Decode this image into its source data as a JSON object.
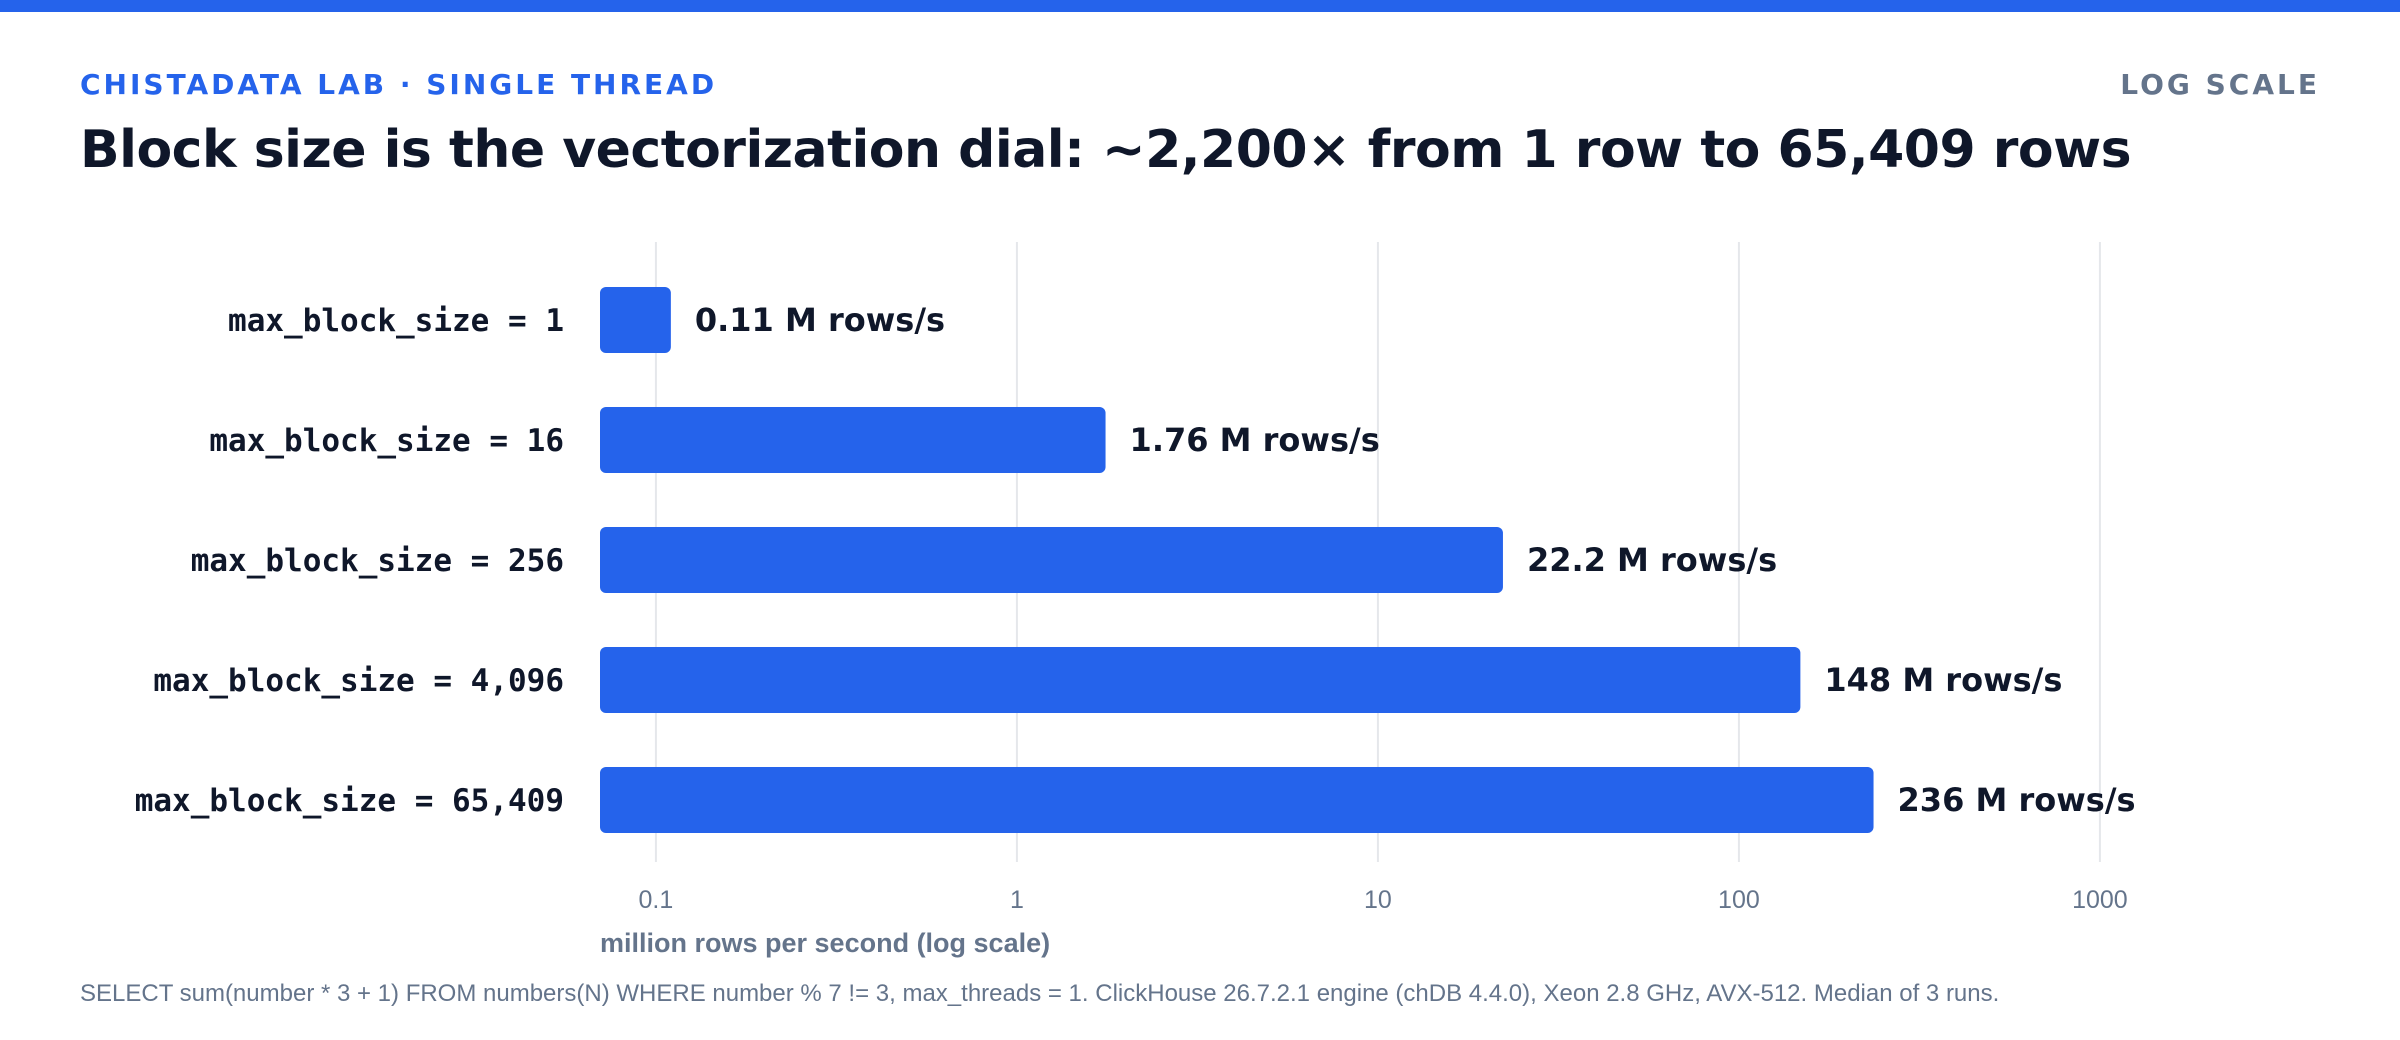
{
  "header": {
    "eyebrow": "CHISTADATA LAB · SINGLE THREAD",
    "scale_tag": "LOG SCALE",
    "title": "Block size is the vectorization dial: ~2,200× from 1 row to 65,409 rows"
  },
  "footnote": "SELECT sum(number * 3 + 1) FROM numbers(N) WHERE number % 7 != 3, max_threads = 1. ClickHouse 26.7.2.1 engine (chDB 4.4.0), Xeon 2.8 GHz, AVX-512. Median of 3 runs.",
  "colors": {
    "bar": "#2563eb",
    "accent": "#2563eb",
    "text": "#0f172a",
    "muted": "#64748b",
    "grid": "#e5e7eb"
  },
  "chart_data": {
    "type": "bar",
    "orientation": "horizontal",
    "categories": [
      "max_block_size = 1",
      "max_block_size = 16",
      "max_block_size = 256",
      "max_block_size = 4,096",
      "max_block_size = 65,409"
    ],
    "values": [
      0.11,
      1.76,
      22.2,
      148,
      236
    ],
    "value_labels": [
      "0.11 M rows/s",
      "1.76 M rows/s",
      "22.2 M rows/s",
      "148 M rows/s",
      "236 M rows/s"
    ],
    "xlabel": "million rows per second (log scale)",
    "xscale": "log",
    "xlim": [
      0.07,
      1000
    ],
    "xticks": [
      0.1,
      1,
      10,
      100,
      1000
    ],
    "xtick_labels": [
      "0.1",
      "1",
      "10",
      "100",
      "1000"
    ],
    "grid": true
  }
}
